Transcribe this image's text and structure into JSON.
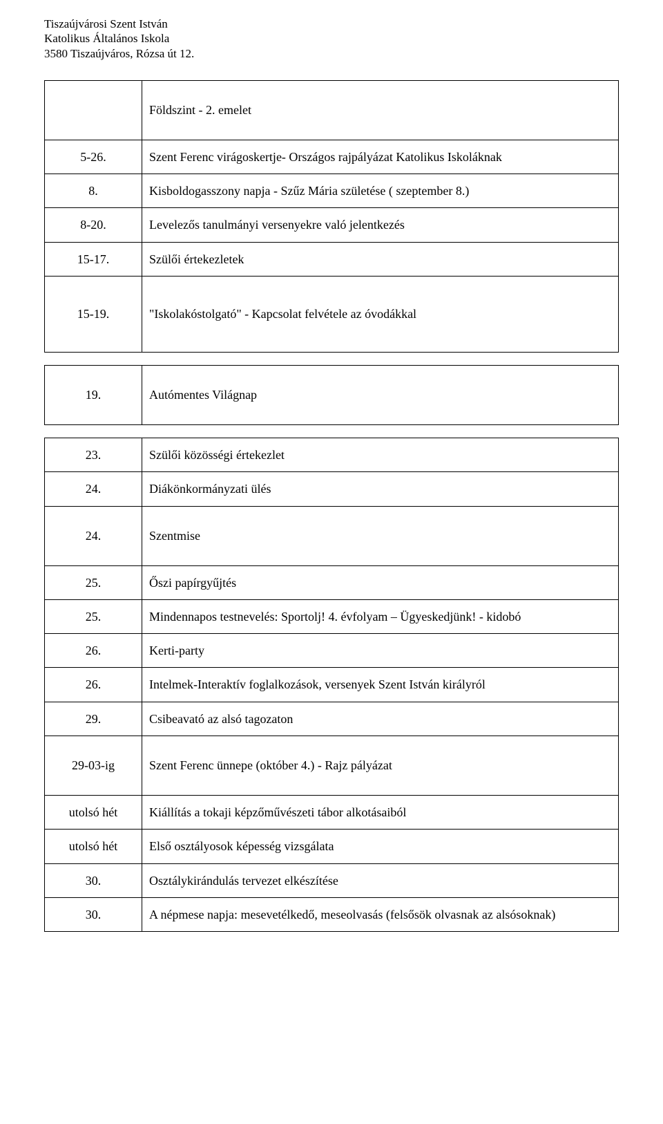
{
  "header": {
    "line1": "Tiszaújvárosi Szent István",
    "line2": "Katolikus Általános Iskola",
    "line3": "3580 Tiszaújváros, Rózsa út 12."
  },
  "table1": {
    "rows": [
      {
        "date": "",
        "desc": "Földszint - 2. emelet"
      },
      {
        "date": "5-26.",
        "desc": "Szent Ferenc virágoskertje- Országos rajpályázat Katolikus Iskoláknak"
      },
      {
        "date": "8.",
        "desc": "Kisboldogasszony napja - Szűz Mária születése ( szeptember 8.)"
      },
      {
        "date": "8-20.",
        "desc": "Levelezős tanulmányi versenyekre való jelentkezés"
      },
      {
        "date": "15-17.",
        "desc": "Szülői értekezletek"
      },
      {
        "date": "15-19.",
        "desc": "\"Iskolakóstolgató\" - Kapcsolat felvétele az óvodákkal"
      }
    ]
  },
  "table2": {
    "rows": [
      {
        "date": "19.",
        "desc": "Autómentes Világnap"
      }
    ]
  },
  "table3": {
    "rows": [
      {
        "date": "23.",
        "desc": "Szülői közösségi értekezlet"
      },
      {
        "date": "24.",
        "desc": "Diákönkormányzati ülés"
      },
      {
        "date": "24.",
        "desc": "Szentmise"
      },
      {
        "date": "25.",
        "desc": "Őszi papírgyűjtés"
      },
      {
        "date": "25.",
        "desc": "Mindennapos testnevelés: Sportolj! 4. évfolyam – Ügyeskedjünk! - kidobó"
      },
      {
        "date": "26.",
        "desc": "Kerti-party"
      },
      {
        "date": "26.",
        "desc": "Intelmek-Interaktív foglalkozások, versenyek Szent István királyról"
      },
      {
        "date": "29.",
        "desc": "Csibeavató az alsó tagozaton"
      },
      {
        "date": "29-03-ig",
        "desc": "Szent Ferenc ünnepe (október 4.) - Rajz pályázat"
      },
      {
        "date": "utolsó hét",
        "desc": "Kiállítás a tokaji képzőművészeti tábor alkotásaiból"
      },
      {
        "date": "utolsó hét",
        "desc": "Első osztályosok képesség vizsgálata"
      },
      {
        "date": "30.",
        "desc": "Osztálykirándulás tervezet elkészítése"
      },
      {
        "date": "30.",
        "desc": "A népmese napja: mesevetélkedő, meseolvasás (felsősök olvasnak az alsósoknak)"
      }
    ]
  }
}
